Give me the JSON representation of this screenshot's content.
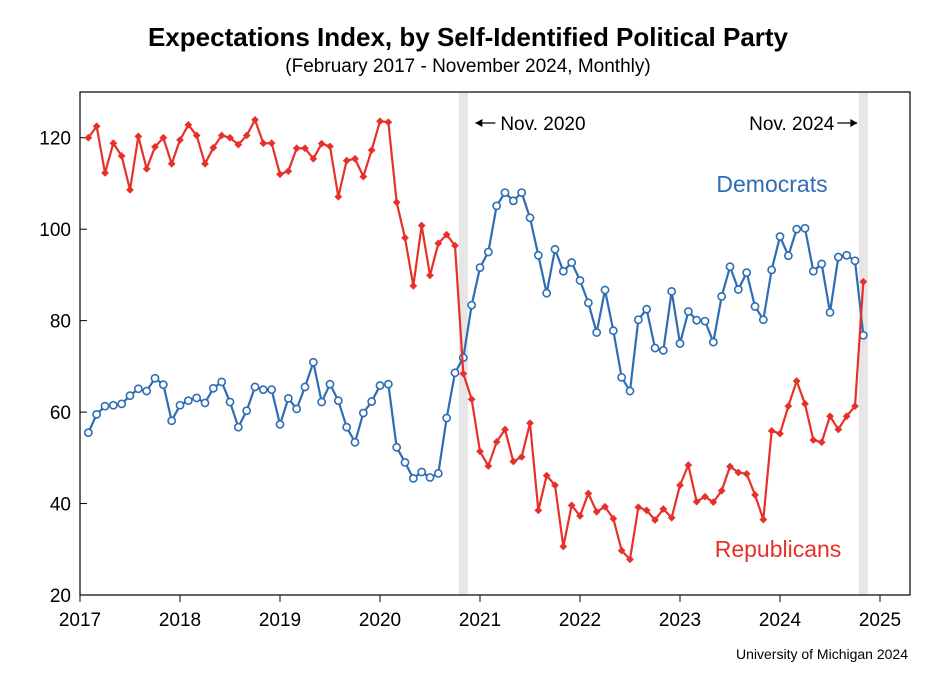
{
  "chart_data": {
    "type": "line",
    "title": "Expectations Index, by Self-Identified Political Party",
    "subtitle": "(February 2017 - November 2024, Monthly)",
    "source": "University of Michigan 2024",
    "xlabel": "",
    "ylabel": "",
    "xlim": [
      2017,
      2025
    ],
    "ylim": [
      20,
      130
    ],
    "x_ticks": [
      "2017",
      "2018",
      "2019",
      "2020",
      "2021",
      "2022",
      "2023",
      "2024",
      "2025"
    ],
    "y_ticks": [
      "20",
      "40",
      "60",
      "80",
      "100",
      "120"
    ],
    "start": "2017-02",
    "interval": "monthly",
    "annotations": [
      {
        "text": "Nov. 2020",
        "x": "2020-11",
        "arrow": "left"
      },
      {
        "text": "Nov. 2024",
        "x": "2024-11",
        "arrow": "right"
      }
    ],
    "highlight_months": [
      "2020-11",
      "2024-11"
    ],
    "series": [
      {
        "name": "Democrats",
        "color": "#2e6db4",
        "marker": "open-circle",
        "values": [
          55.5,
          59.5,
          61.3,
          61.5,
          61.8,
          63.6,
          65.1,
          64.6,
          67.4,
          66.0,
          58.1,
          61.5,
          62.5,
          63.1,
          62.0,
          65.2,
          66.6,
          62.2,
          56.7,
          60.3,
          65.5,
          64.9,
          64.9,
          57.3,
          63.0,
          60.7,
          65.5,
          70.9,
          62.2,
          66.1,
          62.5,
          56.7,
          53.4,
          59.8,
          62.3,
          65.8,
          66.1,
          52.3,
          49.0,
          45.5,
          46.9,
          45.7,
          46.6,
          58.7,
          68.6,
          71.9,
          83.4,
          91.6,
          95.0,
          105.1,
          108.0,
          106.2,
          108.0,
          102.5,
          94.3,
          86.0,
          95.6,
          90.8,
          92.7,
          88.8,
          83.9,
          77.4,
          86.7,
          77.8,
          67.6,
          64.6,
          80.2,
          82.5,
          74.0,
          73.5,
          86.4,
          75.0,
          82.0,
          80.1,
          79.9,
          75.3,
          85.3,
          91.8,
          86.8,
          90.5,
          83.1,
          80.2,
          91.1,
          98.4,
          94.2,
          100.0,
          100.2,
          90.8,
          92.4,
          81.8,
          93.9,
          94.3,
          93.1,
          76.8
        ]
      },
      {
        "name": "Republicans",
        "color": "#e8302a",
        "marker": "filled-diamond",
        "values": [
          120.0,
          122.5,
          112.3,
          118.8,
          116.0,
          108.6,
          120.3,
          113.2,
          118.0,
          120.0,
          114.3,
          119.5,
          122.8,
          120.5,
          114.3,
          117.8,
          120.5,
          120.0,
          118.5,
          120.5,
          123.9,
          118.8,
          118.8,
          112.0,
          112.7,
          117.7,
          117.7,
          115.4,
          118.7,
          118.1,
          107.1,
          115.0,
          115.4,
          111.5,
          117.3,
          123.6,
          123.4,
          105.9,
          98.1,
          87.6,
          100.8,
          89.9,
          96.9,
          98.8,
          96.4,
          68.4,
          62.8,
          51.4,
          48.2,
          53.5,
          56.2,
          49.2,
          50.2,
          57.6,
          38.5,
          46.1,
          44.0,
          30.6,
          39.6,
          37.3,
          42.2,
          38.2,
          39.3,
          36.7,
          29.7,
          27.8,
          39.2,
          38.5,
          36.4,
          38.8,
          36.9,
          44.0,
          48.4,
          40.4,
          41.5,
          40.3,
          42.8,
          48.1,
          46.8,
          46.5,
          41.9,
          36.5,
          55.9,
          55.3,
          61.3,
          66.8,
          61.8,
          53.9,
          53.4,
          59.1,
          56.2,
          59.1,
          61.3,
          88.5
        ]
      }
    ]
  }
}
